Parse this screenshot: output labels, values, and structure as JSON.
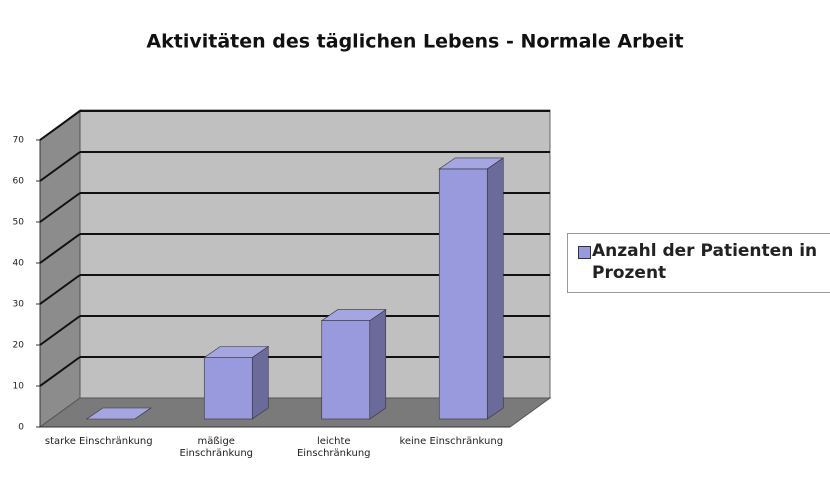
{
  "chart_data": {
    "type": "bar3d",
    "title": "Aktivitäten des täglichen Lebens - Normale Arbeit",
    "categories": [
      "starke Einschränkung",
      "mäßige Einschränkung",
      "leichte Einschränkung",
      "keine Einschränkung"
    ],
    "series": [
      {
        "name": "Anzahl der Patienten in Prozent",
        "color": "#9999dd",
        "values": [
          0,
          15,
          24,
          61
        ]
      }
    ],
    "ylim": [
      0,
      70
    ],
    "yticks": [
      0,
      10,
      20,
      30,
      40,
      50,
      60,
      70
    ],
    "grid": true,
    "legend": "right"
  }
}
